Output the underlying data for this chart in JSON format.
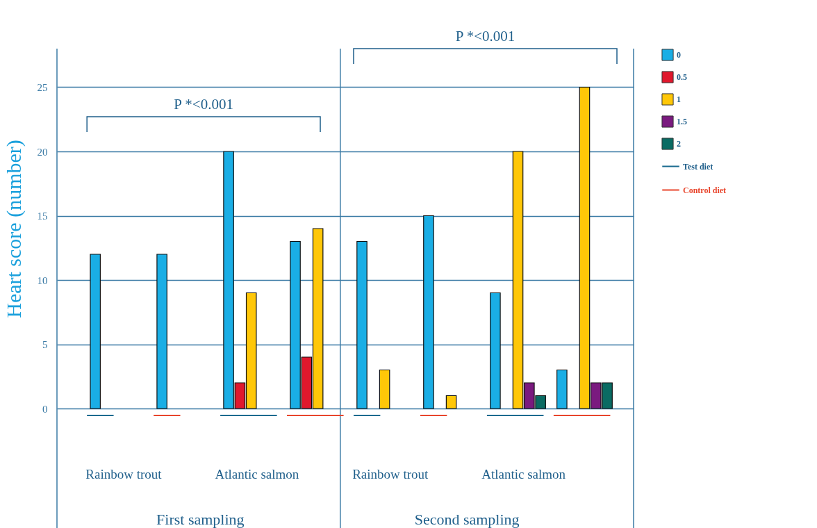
{
  "chart_data": {
    "type": "bar",
    "ylabel": "Heart score (number)",
    "categories": [
      null,
      null,
      null,
      null,
      null,
      null,
      null,
      null
    ],
    "series": [
      {
        "name": "0",
        "color": "#1aaee5",
        "values": [
          12,
          12,
          20,
          13,
          13,
          15,
          9,
          3
        ]
      },
      {
        "name": "0.5",
        "color": "#e0182d",
        "values": [
          null,
          null,
          2,
          4,
          null,
          null,
          null,
          null
        ]
      },
      {
        "name": "1",
        "color": "#ffc708",
        "values": [
          null,
          null,
          9,
          14,
          3,
          1,
          20,
          25
        ]
      },
      {
        "name": "1.5",
        "color": "#7a1a7f",
        "values": [
          null,
          null,
          null,
          null,
          null,
          null,
          2,
          2
        ]
      },
      {
        "name": "2",
        "color": "#0a6b63",
        "values": [
          null,
          null,
          null,
          null,
          null,
          null,
          1,
          2
        ]
      }
    ],
    "ylim": [
      0,
      28
    ],
    "yticks": [
      0,
      5,
      10,
      15,
      20,
      25
    ],
    "grid": "y",
    "legend": "right",
    "annotations": [
      "P *<0.001",
      "P *<0.001",
      "Rainbow trout",
      "Atlantic salmon",
      "Rainbow trout",
      "Atlantic salmon",
      "First sampling",
      "Second sampling",
      "Test diet",
      "Control diet"
    ]
  }
}
